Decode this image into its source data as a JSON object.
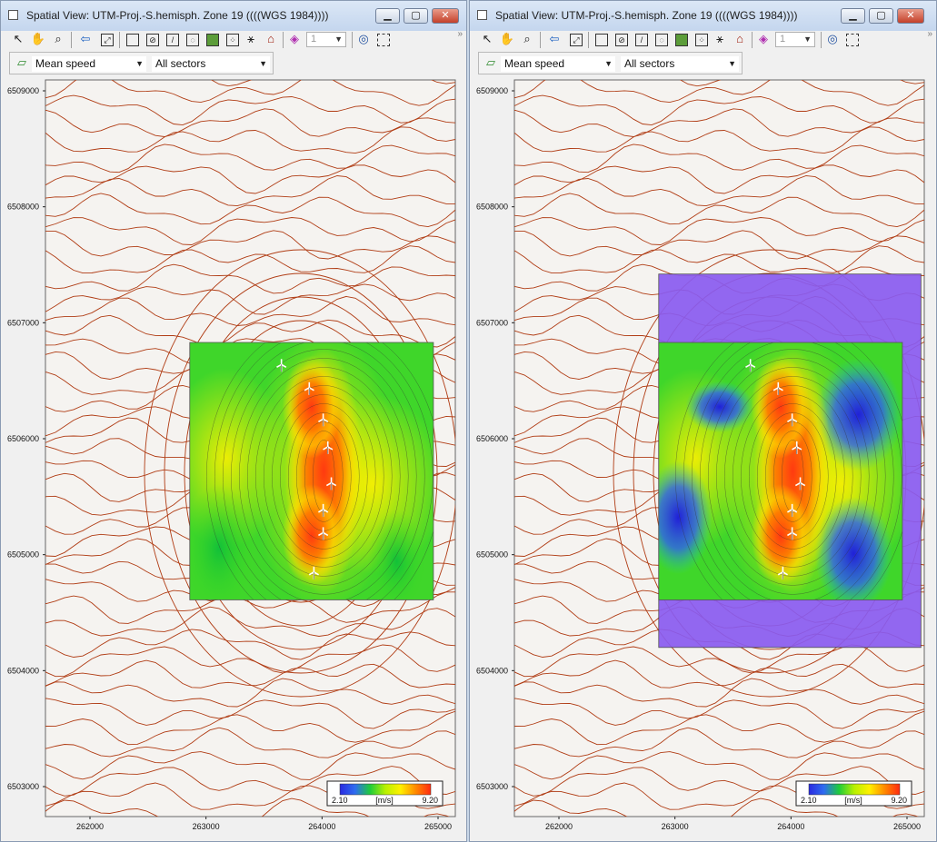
{
  "windows": [
    {
      "id": "left",
      "title": "Spatial View: UTM-Proj.-S.hemisph. Zone 19 ((((WGS 1984))))",
      "layer_select": "1",
      "variable_select": "Mean speed",
      "sector_select": "All sectors",
      "y_ticks": [
        "6509000",
        "6508000",
        "6507000",
        "6506000",
        "6505000",
        "6504000",
        "6503000"
      ],
      "x_ticks": [
        "262000",
        "263000",
        "264000",
        "265000"
      ],
      "legend": {
        "min": "2.10",
        "unit": "[m/s]",
        "max": "9.20"
      },
      "outer_domain": false
    },
    {
      "id": "right",
      "title": "Spatial View: UTM-Proj.-S.hemisph. Zone 19 ((((WGS 1984))))",
      "layer_select": "1",
      "variable_select": "Mean speed",
      "sector_select": "All sectors",
      "y_ticks": [
        "6509000",
        "6508000",
        "6507000",
        "6506000",
        "6505000",
        "6504000",
        "6503000"
      ],
      "x_ticks": [
        "262000",
        "263000",
        "264000",
        "265000"
      ],
      "legend": {
        "min": "2.10",
        "unit": "[m/s]",
        "max": "9.20"
      },
      "outer_domain": true
    }
  ],
  "toolbar_icons": [
    "select-arrow-icon",
    "pan-hand-icon",
    "zoom-icon",
    "back-arrow-icon",
    "zoom-extent-icon",
    "select-area-icon",
    "grid-icon",
    "line-icon",
    "contour-icon",
    "map-icon",
    "grid-points-icon",
    "turbine-icon",
    "house-icon",
    "layer-icon",
    "globe-icon",
    "frame-icon"
  ],
  "turbines": [
    {
      "x": 263650,
      "y": 6506640
    },
    {
      "x": 263890,
      "y": 6506440
    },
    {
      "x": 264010,
      "y": 6506170
    },
    {
      "x": 264050,
      "y": 6505930
    },
    {
      "x": 264080,
      "y": 6505620
    },
    {
      "x": 264010,
      "y": 6505390
    },
    {
      "x": 264010,
      "y": 6505190
    },
    {
      "x": 263930,
      "y": 6504850
    }
  ],
  "colors": {
    "contour": "#b03c14",
    "map_bg": "#f5f3f0",
    "outer_domain": "#8a5cf0",
    "legend_gradient": [
      "#2a2ae0",
      "#2f6cf0",
      "#1fcc3a",
      "#b8f000",
      "#fff000",
      "#ff8a00",
      "#ff2a10"
    ]
  }
}
